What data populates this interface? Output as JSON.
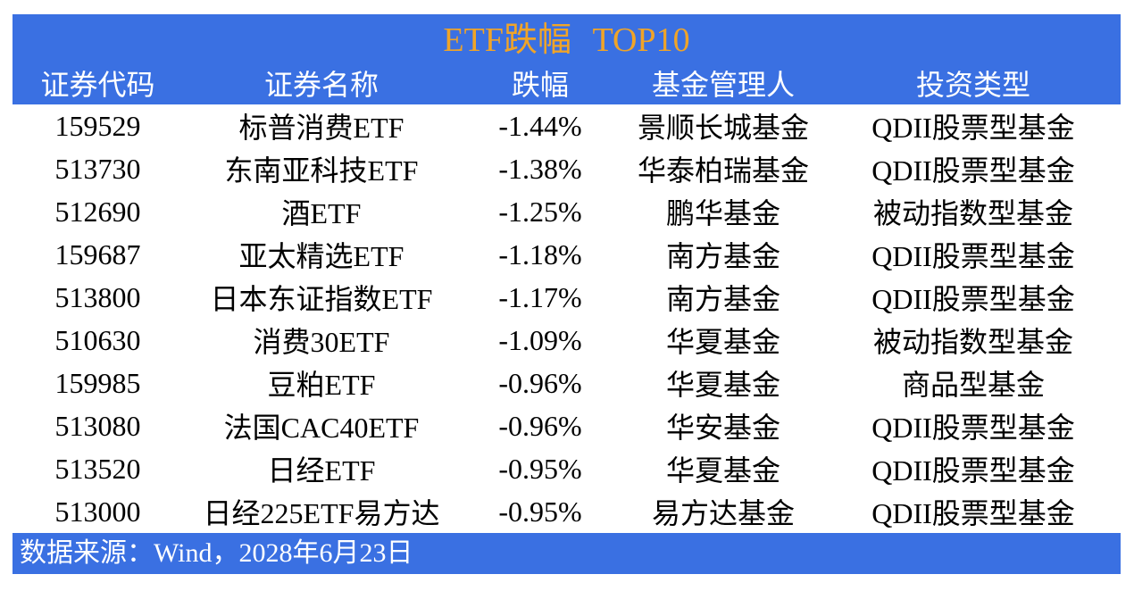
{
  "chart_data": {
    "type": "table",
    "title": "ETF跌幅 TOP10",
    "columns": [
      "证券代码",
      "证券名称",
      "跌幅",
      "基金管理人",
      "投资类型"
    ],
    "rows": [
      [
        "159529",
        "标普消费ETF",
        "-1.44%",
        "景顺长城基金",
        "QDII股票型基金"
      ],
      [
        "513730",
        "东南亚科技ETF",
        "-1.38%",
        "华泰柏瑞基金",
        "QDII股票型基金"
      ],
      [
        "512690",
        "酒ETF",
        "-1.25%",
        "鹏华基金",
        "被动指数型基金"
      ],
      [
        "159687",
        "亚太精选ETF",
        "-1.18%",
        "南方基金",
        "QDII股票型基金"
      ],
      [
        "513800",
        "日本东证指数ETF",
        "-1.17%",
        "南方基金",
        "QDII股票型基金"
      ],
      [
        "510630",
        "消费30ETF",
        "-1.09%",
        "华夏基金",
        "被动指数型基金"
      ],
      [
        "159985",
        "豆粕ETF",
        "-0.96%",
        "华夏基金",
        "商品型基金"
      ],
      [
        "513080",
        "法国CAC40ETF",
        "-0.96%",
        "华安基金",
        "QDII股票型基金"
      ],
      [
        "513520",
        "日经ETF",
        "-0.95%",
        "华夏基金",
        "QDII股票型基金"
      ],
      [
        "513000",
        "日经225ETF易方达",
        "-0.95%",
        "易方达基金",
        "QDII股票型基金"
      ]
    ],
    "source": "数据来源：Wind，2028年6月23日",
    "legend_position": "none",
    "grid": "off"
  },
  "colors": {
    "banner_blue": "#3A70E2",
    "title_gold": "#F0A428",
    "body_text": "#000000",
    "header_text": "#FFFFFF"
  }
}
